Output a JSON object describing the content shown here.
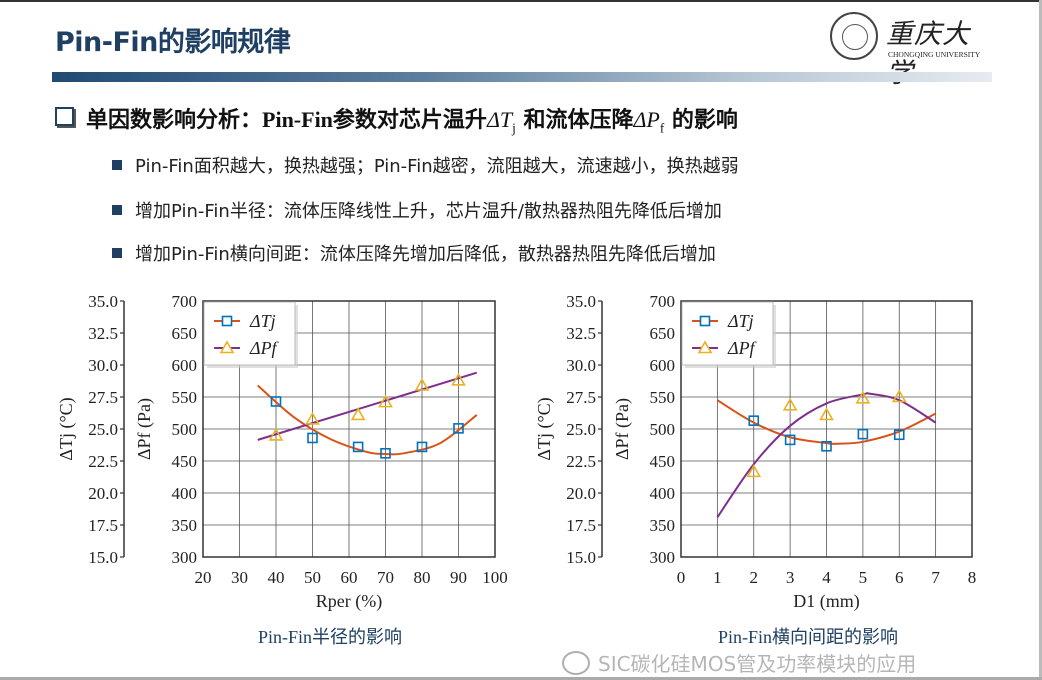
{
  "header": {
    "title": "Pin-Fin的影响规律",
    "logo_text_cn": "重庆大学",
    "logo_text_en": "CHONGQING UNIVERSITY"
  },
  "heading": {
    "part1": "单因数影响分析：",
    "part2": "Pin-Fin",
    "part3": "参数对芯片温升",
    "dt": "ΔT",
    "dt_sub": "j",
    "part4": "和流体压降",
    "dp": "ΔP",
    "dp_sub": "f",
    "part5": "的影响"
  },
  "bullets": [
    "Pin-Fin面积越大，换热越强；Pin-Fin越密，流阻越大，流速越小，换热越弱",
    "增加Pin-Fin半径：流体压降线性上升，芯片温升/散热器热阻先降低后增加",
    "增加Pin-Fin横向间距：流体压降先增加后降低，散热器热阻先降低后增加"
  ],
  "watermark": "SIC碳化硅MOS管及功率模块的应用",
  "colors": {
    "accent": "#1f3f63",
    "tj_line": "#d95319",
    "tj_marker": "#0072bd",
    "pf_line": "#7e2f8e",
    "pf_marker": "#edb120"
  },
  "chart_data": [
    {
      "type": "line",
      "caption": "Pin-Fin半径的影响",
      "xlabel": "Rper (%)",
      "ylabel_left": "ΔTj (°C)",
      "ylabel_right": "ΔPf (Pa)",
      "xlim": [
        20,
        100
      ],
      "ylim_left": [
        15,
        35
      ],
      "ylim_right": [
        300,
        700
      ],
      "x_ticks": [
        "20",
        "30",
        "40",
        "50",
        "60",
        "70",
        "80",
        "90",
        "100"
      ],
      "y_ticks_left": [
        "15.0",
        "17.5",
        "20.0",
        "22.5",
        "25.0",
        "27.5",
        "30.0",
        "32.5",
        "35.0"
      ],
      "y_ticks_right": [
        "300",
        "350",
        "400",
        "450",
        "500",
        "550",
        "600",
        "650",
        "700"
      ],
      "grid": true,
      "legend": "top-left",
      "series": [
        {
          "name": "ΔTj",
          "axis": "left",
          "marker": "square",
          "x": [
            40,
            50,
            62.5,
            70,
            80,
            90
          ],
          "y": [
            27.15,
            24.3,
            23.6,
            23.1,
            23.6,
            25.05
          ],
          "fit": {
            "x": [
              35,
              45,
              55,
              65,
              70,
              75,
              85,
              95
            ],
            "y": [
              28.4,
              25.9,
              24.2,
              23.2,
              23.05,
              23.1,
              23.9,
              26.1
            ]
          }
        },
        {
          "name": "ΔPf",
          "axis": "right",
          "marker": "triangle",
          "x": [
            40,
            50,
            62.5,
            70,
            80,
            90
          ],
          "y": [
            490,
            515,
            522,
            542,
            568,
            576
          ],
          "fit": {
            "x": [
              35,
              95
            ],
            "y": [
              483,
              588
            ]
          }
        }
      ]
    },
    {
      "type": "line",
      "caption": "Pin-Fin横向间距的影响",
      "xlabel": "D1 (mm)",
      "ylabel_left": "ΔTj (°C)",
      "ylabel_right": "ΔPf (Pa)",
      "xlim": [
        0,
        8
      ],
      "ylim_left": [
        15,
        35
      ],
      "ylim_right": [
        300,
        700
      ],
      "x_ticks": [
        "0",
        "1",
        "2",
        "3",
        "4",
        "5",
        "6",
        "7",
        "8"
      ],
      "y_ticks_left": [
        "15.0",
        "17.5",
        "20.0",
        "22.5",
        "25.0",
        "27.5",
        "30.0",
        "32.5",
        "35.0"
      ],
      "y_ticks_right": [
        "300",
        "350",
        "400",
        "450",
        "500",
        "550",
        "600",
        "650",
        "700"
      ],
      "grid": true,
      "legend": "top-left",
      "series": [
        {
          "name": "ΔTj",
          "axis": "left",
          "marker": "square",
          "x": [
            2,
            3,
            4,
            5,
            6
          ],
          "y": [
            25.65,
            24.15,
            23.65,
            24.6,
            24.55
          ],
          "fit": {
            "x": [
              1,
              2,
              3,
              4,
              4.3,
              5,
              6,
              7
            ],
            "y": [
              27.25,
              25.5,
              24.35,
              23.9,
              23.85,
              24.0,
              24.8,
              26.2
            ]
          }
        },
        {
          "name": "ΔPf",
          "axis": "right",
          "marker": "triangle",
          "x": [
            2,
            3,
            4,
            5,
            6
          ],
          "y": [
            433,
            537,
            522,
            548,
            550
          ],
          "fit": {
            "x": [
              1,
              2,
              3,
              4,
              5,
              5.2,
              6,
              7
            ],
            "y": [
              362,
              445,
              505,
              540,
              554,
              555,
              545,
              510
            ]
          }
        }
      ]
    }
  ]
}
